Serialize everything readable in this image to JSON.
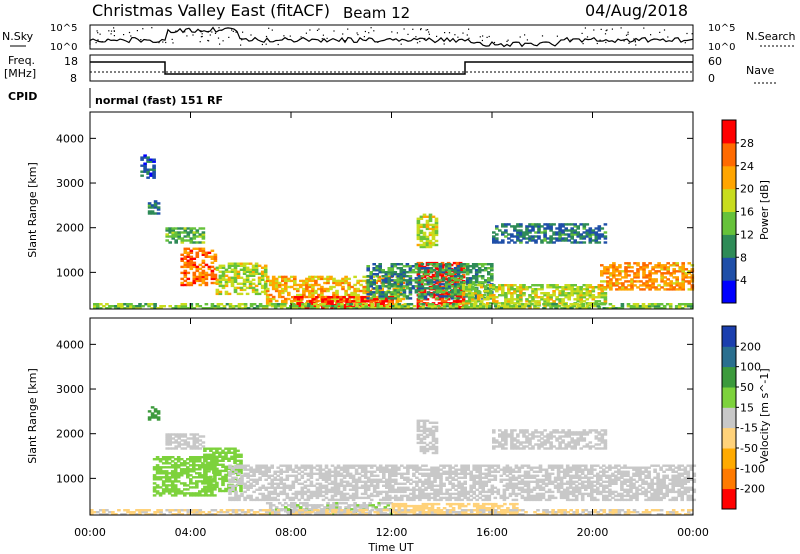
{
  "header": {
    "title": "Christmas Valley East (fitACF)",
    "beam": "Beam 12",
    "date": "04/Aug/2018"
  },
  "top_panels": {
    "nsky_label": "N.Sky",
    "nsearch_label": "N.Search",
    "nsky_ticks": [
      "10^5",
      "10^0"
    ],
    "nsearch_ticks": [
      "10^5",
      "10^0"
    ],
    "freq_label": "Freq.",
    "freq_unit": "[MHz]",
    "freq_ticks": [
      "18",
      "8"
    ],
    "nave_label": "Nave",
    "nave_ticks": [
      "60",
      "0"
    ],
    "cpid_label": "CPID",
    "cpid_value": "normal (fast) 151 RF"
  },
  "colors": {
    "power": [
      "#0000ff",
      "#1f4fa8",
      "#2e8b57",
      "#66c23a",
      "#c8dc1e",
      "#ffa500",
      "#ff6a00",
      "#ff0000"
    ],
    "velocity": [
      "#ff0000",
      "#ff7a00",
      "#ffaa00",
      "#ffd27a",
      "#c8c8c8",
      "#7dd23c",
      "#3c9a3c",
      "#2a6f8f",
      "#1b3fae"
    ]
  },
  "chart_data": [
    {
      "type": "heatmap",
      "panel": "power",
      "ylabel": "Slant Range [km]",
      "xlabel": "",
      "x_ticks": [
        "00:00",
        "04:00",
        "08:00",
        "12:00",
        "16:00",
        "20:00",
        "00:00"
      ],
      "xlim_hours": [
        0,
        24
      ],
      "y_ticks": [
        1000,
        2000,
        3000,
        4000
      ],
      "ylim_km": [
        180,
        4590
      ],
      "colorbar": {
        "label": "Power [dB]",
        "ticks": [
          "4",
          "8",
          "12",
          "16",
          "20",
          "24",
          "28"
        ],
        "range": [
          0,
          30
        ]
      },
      "regions": [
        {
          "t0": 3.6,
          "t1": 5.0,
          "r0": 700,
          "r1": 1550,
          "v": 24
        },
        {
          "t0": 5.0,
          "t1": 7.0,
          "r0": 500,
          "r1": 1200,
          "v": 16
        },
        {
          "t0": 7.0,
          "t1": 12.5,
          "r0": 250,
          "r1": 900,
          "v": 20
        },
        {
          "t0": 8.0,
          "t1": 12.0,
          "r0": 200,
          "r1": 450,
          "v": 28
        },
        {
          "t0": 13.0,
          "t1": 14.8,
          "r0": 200,
          "r1": 1200,
          "v": 28
        },
        {
          "t0": 11.0,
          "t1": 16.0,
          "r0": 400,
          "r1": 1200,
          "v": 10
        },
        {
          "t0": 14.8,
          "t1": 20.5,
          "r0": 200,
          "r1": 700,
          "v": 16
        },
        {
          "t0": 20.3,
          "t1": 24.0,
          "r0": 600,
          "r1": 1200,
          "v": 22
        },
        {
          "t0": 16.0,
          "t1": 20.5,
          "r0": 1650,
          "r1": 2100,
          "v": 8
        },
        {
          "t0": 13.0,
          "t1": 13.8,
          "r0": 1550,
          "r1": 2300,
          "v": 16
        },
        {
          "t0": 2.3,
          "t1": 2.7,
          "r0": 2300,
          "r1": 2600,
          "v": 8
        },
        {
          "t0": 2.0,
          "t1": 2.6,
          "r0": 3100,
          "r1": 3600,
          "v": 6
        },
        {
          "t0": 3.0,
          "t1": 4.5,
          "r0": 1650,
          "r1": 2000,
          "v": 12
        },
        {
          "t0": 0.0,
          "t1": 24.0,
          "r0": 180,
          "r1": 300,
          "v": 14
        }
      ]
    },
    {
      "type": "heatmap",
      "panel": "velocity",
      "ylabel": "Slant Range [km]",
      "xlabel": "Time UT",
      "x_ticks": [
        "00:00",
        "04:00",
        "08:00",
        "12:00",
        "16:00",
        "20:00",
        "00:00"
      ],
      "xlim_hours": [
        0,
        24
      ],
      "y_ticks": [
        1000,
        2000,
        3000,
        4000
      ],
      "ylim_km": [
        180,
        4590
      ],
      "colorbar": {
        "label": "Velocity [m s^-1]",
        "ticks": [
          "-200",
          "-100",
          "-50",
          "-15",
          "15",
          "50",
          "100",
          "200"
        ],
        "range": [
          -250,
          250
        ]
      },
      "regions": [
        {
          "t0": 2.5,
          "t1": 5.0,
          "r0": 600,
          "r1": 1500,
          "v": 40
        },
        {
          "t0": 4.5,
          "t1": 6.0,
          "r0": 700,
          "r1": 1650,
          "v": 60
        },
        {
          "t0": 5.5,
          "t1": 24.0,
          "r0": 500,
          "r1": 1300,
          "v": 0
        },
        {
          "t0": 7.0,
          "t1": 12.0,
          "r0": 200,
          "r1": 450,
          "v": 20
        },
        {
          "t0": 12.0,
          "t1": 17.0,
          "r0": 180,
          "r1": 450,
          "v": -40
        },
        {
          "t0": 0.0,
          "t1": 24.0,
          "r0": 180,
          "r1": 300,
          "v": -30
        },
        {
          "t0": 16.0,
          "t1": 20.5,
          "r0": 1650,
          "r1": 2100,
          "v": 0
        },
        {
          "t0": 13.0,
          "t1": 13.8,
          "r0": 1550,
          "r1": 2300,
          "v": 0
        },
        {
          "t0": 2.3,
          "t1": 2.7,
          "r0": 2300,
          "r1": 2600,
          "v": 120
        },
        {
          "t0": 3.0,
          "t1": 4.5,
          "r0": 1650,
          "r1": 2000,
          "v": 0
        }
      ]
    }
  ]
}
